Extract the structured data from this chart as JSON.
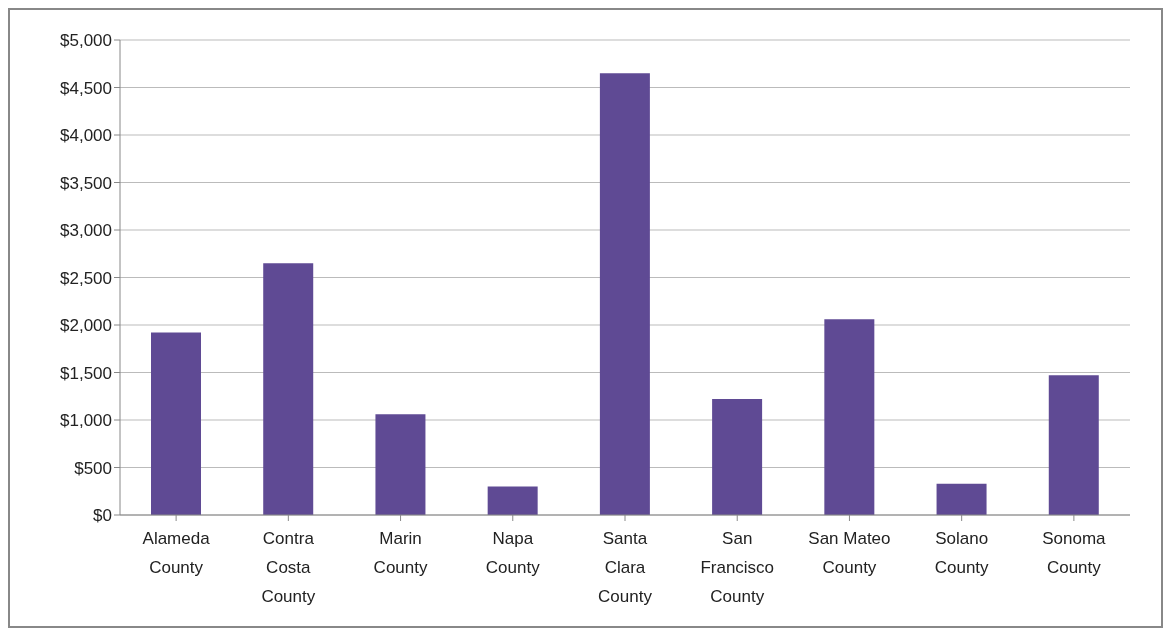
{
  "chart_data": {
    "type": "bar",
    "categories": [
      "Alameda County",
      "Contra Costa County",
      "Marin County",
      "Napa County",
      "Santa Clara County",
      "San Francisco County",
      "San Mateo County",
      "Solano County",
      "Sonoma County"
    ],
    "values": [
      1920,
      2650,
      1060,
      300,
      4650,
      1220,
      2060,
      330,
      1470
    ],
    "color": "#5f4a94",
    "ylim": [
      0,
      5000
    ],
    "yticks": [
      {
        "value": 0,
        "label": "$0"
      },
      {
        "value": 500,
        "label": "$500"
      },
      {
        "value": 1000,
        "label": "$1,000"
      },
      {
        "value": 1500,
        "label": "$1,500"
      },
      {
        "value": 2000,
        "label": "$2,000"
      },
      {
        "value": 2500,
        "label": "$2,500"
      },
      {
        "value": 3000,
        "label": "$3,000"
      },
      {
        "value": 3500,
        "label": "$3,500"
      },
      {
        "value": 4000,
        "label": "$4,000"
      },
      {
        "value": 4500,
        "label": "$4,500"
      },
      {
        "value": 5000,
        "label": "$5,000"
      }
    ],
    "grid": "y",
    "legend": false
  }
}
